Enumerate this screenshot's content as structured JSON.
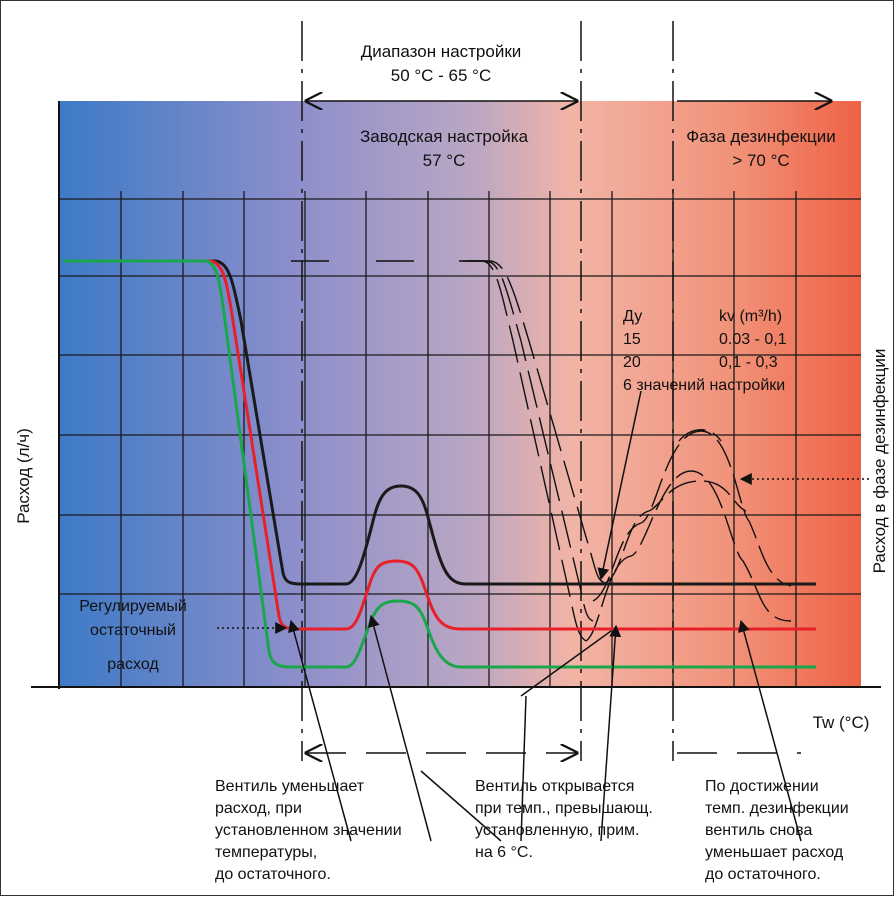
{
  "header": {
    "range_title": "Диапазон настройки",
    "range_value": "50 °C - 65 °C",
    "factory_title": "Заводская настройка",
    "factory_value": "57 °C",
    "disinfection_title": "Фаза дезинфекции",
    "disinfection_value": "> 70 °C"
  },
  "axes": {
    "y_label": "Расход (л/ч)",
    "y_label_right": "Расход в фазе дезинфекции",
    "x_label": "Tw (°C)"
  },
  "table": {
    "col1_header": "Ду",
    "col2_header": "kv (m³/h)",
    "rows": [
      {
        "dn": "15",
        "kv": "0.03 - 0,1"
      },
      {
        "dn": "20",
        "kv": "0,1 - 0,3"
      }
    ],
    "footer": "6 значений настройки"
  },
  "residual_label": {
    "line1": "Регулируемый",
    "line2": "остаточный",
    "line3": "расход"
  },
  "notes": {
    "left": [
      "Вентиль уменьшает",
      "расход, при",
      "установленном значении",
      "температуры,",
      "до остаточного."
    ],
    "middle": [
      "Вентиль открывается",
      "при темп., превышающ.",
      "установленную, прим.",
      "на 6 °С."
    ],
    "right": [
      "По достижении",
      "темп. дезинфекции",
      "вентиль снова",
      "уменьшает расход",
      "до остаточного."
    ]
  },
  "colors": {
    "gradient_left": "#3f7fc8",
    "gradient_mid": "#b7a6c6",
    "gradient_right": "#ee6448",
    "curve_black": "#1a1a1a",
    "curve_red": "#e8202a",
    "curve_green": "#1aa64a"
  }
}
